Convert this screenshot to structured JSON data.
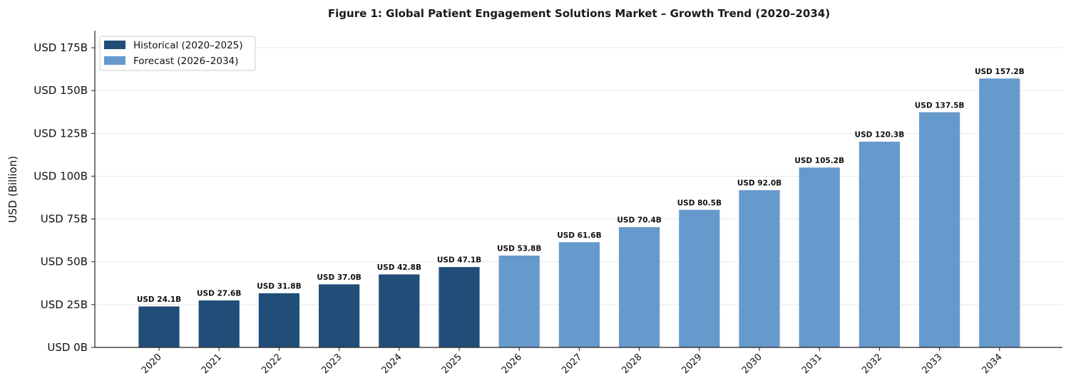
{
  "chart_data": {
    "type": "bar",
    "title": "Figure 1: Global Patient Engagement Solutions Market – Growth Trend (2020–2034)",
    "xlabel": "",
    "ylabel": "USD (Billion)",
    "ylim": [
      0,
      185
    ],
    "yticks": [
      0,
      25,
      50,
      75,
      100,
      125,
      150,
      175
    ],
    "ytick_labels": [
      "USD 0B",
      "USD 25B",
      "USD 50B",
      "USD 75B",
      "USD 100B",
      "USD 125B",
      "USD 150B",
      "USD 175B"
    ],
    "categories": [
      "2020",
      "2021",
      "2022",
      "2023",
      "2024",
      "2025",
      "2026",
      "2027",
      "2028",
      "2029",
      "2030",
      "2031",
      "2032",
      "2033",
      "2034"
    ],
    "values": [
      24.1,
      27.6,
      31.8,
      37.0,
      42.8,
      47.1,
      53.8,
      61.6,
      70.4,
      80.5,
      92.0,
      105.2,
      120.3,
      137.5,
      157.2
    ],
    "data_labels": [
      "USD 24.1B",
      "USD 27.6B",
      "USD 31.8B",
      "USD 37.0B",
      "USD 42.8B",
      "USD 47.1B",
      "USD 53.8B",
      "USD 61.6B",
      "USD 70.4B",
      "USD 80.5B",
      "USD 92.0B",
      "USD 105.2B",
      "USD 120.3B",
      "USD 137.5B",
      "USD 157.2B"
    ],
    "series_group": [
      "historical",
      "historical",
      "historical",
      "historical",
      "historical",
      "historical",
      "forecast",
      "forecast",
      "forecast",
      "forecast",
      "forecast",
      "forecast",
      "forecast",
      "forecast",
      "forecast"
    ],
    "legend": {
      "placement": "top-left",
      "entries": [
        {
          "key": "historical",
          "label": "Historical (2020–2025)",
          "color": "#214e78"
        },
        {
          "key": "forecast",
          "label": "Forecast (2026–2034)",
          "color": "#6699cc"
        }
      ]
    },
    "grid": "horizontal"
  }
}
